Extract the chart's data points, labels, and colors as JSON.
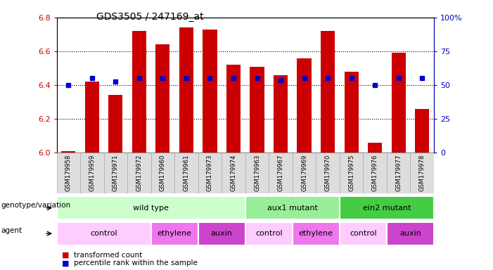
{
  "title": "GDS3505 / 247169_at",
  "samples": [
    "GSM179958",
    "GSM179959",
    "GSM179971",
    "GSM179972",
    "GSM179960",
    "GSM179961",
    "GSM179973",
    "GSM179974",
    "GSM179963",
    "GSM179967",
    "GSM179969",
    "GSM179970",
    "GSM179975",
    "GSM179976",
    "GSM179977",
    "GSM179978"
  ],
  "bar_values": [
    6.01,
    6.42,
    6.34,
    6.72,
    6.64,
    6.74,
    6.73,
    6.52,
    6.51,
    6.46,
    6.56,
    6.72,
    6.48,
    6.06,
    6.59,
    6.26
  ],
  "dot_values": [
    6.4,
    6.44,
    6.42,
    6.44,
    6.44,
    6.44,
    6.44,
    6.44,
    6.44,
    6.43,
    6.44,
    6.44,
    6.44,
    6.4,
    6.44,
    6.44
  ],
  "bar_color": "#cc0000",
  "dot_color": "#0000cc",
  "ylim": [
    6.0,
    6.8
  ],
  "y2lim": [
    0,
    100
  ],
  "yticks": [
    6.0,
    6.2,
    6.4,
    6.6,
    6.8
  ],
  "y2ticks": [
    0,
    25,
    50,
    75,
    100
  ],
  "y2ticklabels": [
    "0",
    "25",
    "50",
    "75",
    "100%"
  ],
  "genotype_groups": [
    {
      "label": "wild type",
      "start": 0,
      "end": 8,
      "color": "#ccffcc"
    },
    {
      "label": "aux1 mutant",
      "start": 8,
      "end": 12,
      "color": "#99ee99"
    },
    {
      "label": "ein2 mutant",
      "start": 12,
      "end": 16,
      "color": "#44cc44"
    }
  ],
  "agent_groups": [
    {
      "label": "control",
      "start": 0,
      "end": 4,
      "color": "#ffccff"
    },
    {
      "label": "ethylene",
      "start": 4,
      "end": 6,
      "color": "#ee77ee"
    },
    {
      "label": "auxin",
      "start": 6,
      "end": 8,
      "color": "#cc44cc"
    },
    {
      "label": "control",
      "start": 8,
      "end": 10,
      "color": "#ffccff"
    },
    {
      "label": "ethylene",
      "start": 10,
      "end": 12,
      "color": "#ee77ee"
    },
    {
      "label": "control",
      "start": 12,
      "end": 14,
      "color": "#ffccff"
    },
    {
      "label": "auxin",
      "start": 14,
      "end": 16,
      "color": "#cc44cc"
    }
  ],
  "legend_items": [
    {
      "label": "transformed count",
      "color": "#cc0000"
    },
    {
      "label": "percentile rank within the sample",
      "color": "#0000cc"
    }
  ],
  "bg_color": "#ffffff",
  "tick_label_color_left": "#cc0000",
  "tick_label_color_right": "#0000bb",
  "xtick_bg": "#dddddd"
}
